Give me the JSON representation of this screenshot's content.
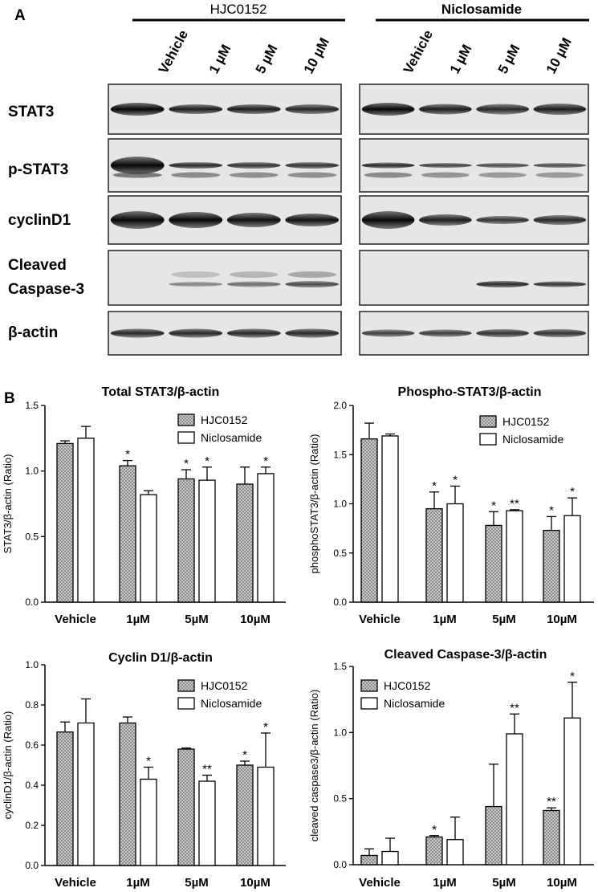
{
  "panel_a": {
    "label": "A",
    "groups": [
      {
        "name": "HJC0152",
        "lanes": [
          "Vehicle",
          "1 µM",
          "5 µM",
          "10 µM"
        ]
      },
      {
        "name": "Niclosamide",
        "lanes": [
          "Vehicle",
          "1 µM",
          "5 µM",
          "10 µM"
        ]
      }
    ],
    "rows": [
      "STAT3",
      "p-STAT3",
      "cyclinD1",
      "Cleaved\nCaspase-3",
      "β-actin"
    ]
  },
  "panel_b": {
    "label": "B"
  },
  "legend": [
    "HJC0152",
    "Niclosamide"
  ],
  "colors": {
    "hjc": "#9a9a9a",
    "niclo": "#ffffff",
    "axis": "#000000"
  },
  "chart_data": [
    {
      "type": "bar",
      "title": "Total STAT3/β-actin",
      "ylabel": "STAT3/β-actin (Ratio)",
      "categories": [
        "Vehicle",
        "1µM",
        "5µM",
        "10µM"
      ],
      "yticks": [
        "0.0",
        "0.5",
        "1.0",
        "1.5"
      ],
      "ylim": [
        0,
        1.5
      ],
      "series": [
        {
          "name": "HJC0152",
          "values": [
            1.21,
            1.04,
            0.94,
            0.9
          ],
          "errors": [
            0.02,
            0.04,
            0.07,
            0.13
          ],
          "stars": [
            "",
            "*",
            "*",
            ""
          ]
        },
        {
          "name": "Niclosamide",
          "values": [
            1.25,
            0.82,
            0.93,
            0.98
          ],
          "errors": [
            0.09,
            0.03,
            0.1,
            0.05
          ],
          "stars": [
            "",
            "",
            "*",
            "*"
          ]
        }
      ]
    },
    {
      "type": "bar",
      "title": "Phospho-STAT3/β-actin",
      "ylabel": "phosphoSTAT3/β-actin (Ratio)",
      "categories": [
        "Vehicle",
        "1µM",
        "5µM",
        "10µM"
      ],
      "yticks": [
        "0.0",
        "0.5",
        "1.0",
        "1.5",
        "2.0"
      ],
      "ylim": [
        0,
        2.0
      ],
      "series": [
        {
          "name": "HJC0152",
          "values": [
            1.66,
            0.95,
            0.78,
            0.73
          ],
          "errors": [
            0.16,
            0.17,
            0.14,
            0.14
          ],
          "stars": [
            "",
            "*",
            "*",
            "*"
          ]
        },
        {
          "name": "Niclosamide",
          "values": [
            1.69,
            1.0,
            0.93,
            0.88
          ],
          "errors": [
            0.02,
            0.18,
            0.01,
            0.18
          ],
          "stars": [
            "",
            "*",
            "**",
            "*"
          ]
        }
      ]
    },
    {
      "type": "bar",
      "title": "Cyclin D1/β-actin",
      "ylabel": "cyclinD1/β-actin (Ratio)",
      "categories": [
        "Vehicle",
        "1µM",
        "5µM",
        "10µM"
      ],
      "yticks": [
        "0.0",
        "0.2",
        "0.4",
        "0.6",
        "0.8",
        "1.0"
      ],
      "ylim": [
        0,
        1.0
      ],
      "series": [
        {
          "name": "HJC0152",
          "values": [
            0.665,
            0.71,
            0.58,
            0.5
          ],
          "errors": [
            0.05,
            0.03,
            0.005,
            0.02
          ],
          "stars": [
            "",
            "",
            "",
            "*"
          ]
        },
        {
          "name": "Niclosamide",
          "values": [
            0.71,
            0.43,
            0.42,
            0.49
          ],
          "errors": [
            0.12,
            0.06,
            0.03,
            0.17
          ],
          "stars": [
            "",
            "*",
            "**",
            "*"
          ]
        }
      ]
    },
    {
      "type": "bar",
      "title": "Cleaved Caspase-3/β-actin",
      "ylabel": "cleaved caspase3/β-actin (Ratio)",
      "categories": [
        "Vehicle",
        "1µM",
        "5µM",
        "10µM"
      ],
      "yticks": [
        "0.0",
        "0.5",
        "1.0",
        "1.5"
      ],
      "ylim": [
        0,
        1.5
      ],
      "series": [
        {
          "name": "HJC0152",
          "values": [
            0.07,
            0.21,
            0.44,
            0.41
          ],
          "errors": [
            0.05,
            0.01,
            0.32,
            0.02
          ],
          "stars": [
            "",
            "*",
            "",
            "**"
          ]
        },
        {
          "name": "Niclosamide",
          "values": [
            0.1,
            0.19,
            0.99,
            1.11
          ],
          "errors": [
            0.1,
            0.17,
            0.15,
            0.27
          ],
          "stars": [
            "",
            "",
            "**",
            "*"
          ]
        }
      ]
    }
  ]
}
